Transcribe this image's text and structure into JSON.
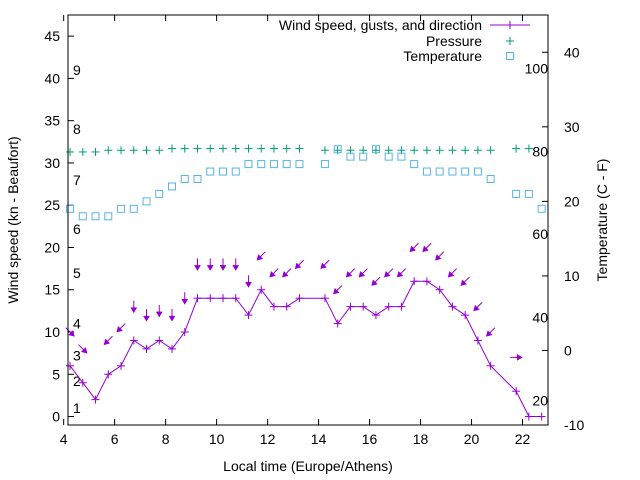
{
  "chart_data": {
    "type": "line",
    "xlabel": "Local time (Europe/Athens)",
    "ylabel": "Wind speed (kn - Beaufort)",
    "y2label": "Temperature (C - F)",
    "xlim": [
      4.17,
      23
    ],
    "ylim": [
      -1,
      47.5
    ],
    "y2lim": [
      -10,
      45
    ],
    "x_ticks": [
      4,
      6,
      8,
      10,
      12,
      14,
      16,
      18,
      20,
      22
    ],
    "y_ticks": [
      0,
      5,
      10,
      15,
      20,
      25,
      30,
      35,
      40,
      45
    ],
    "y2_ticks": [
      -10,
      0,
      10,
      20,
      30,
      40
    ],
    "beaufort_labels": [
      {
        "label": "1",
        "y": 1
      },
      {
        "label": "2",
        "y": 4.2
      },
      {
        "label": "3",
        "y": 7.2
      },
      {
        "label": "4",
        "y": 11
      },
      {
        "label": "5",
        "y": 17
      },
      {
        "label": "6",
        "y": 22.2
      },
      {
        "label": "7",
        "y": 28
      },
      {
        "label": "8",
        "y": 34
      },
      {
        "label": "9",
        "y": 41
      }
    ],
    "fahrenheit_labels": [
      {
        "label": "20",
        "y2": -6.7
      },
      {
        "label": "40",
        "y2": 4.4
      },
      {
        "label": "60",
        "y2": 15.6
      },
      {
        "label": "80",
        "y2": 26.7
      },
      {
        "label": "100",
        "y2": 37.8
      }
    ],
    "legend_position": "top-right",
    "legend": [
      {
        "label": "Wind speed, gusts, and direction",
        "color": "#9400d3",
        "marker": "plus-line"
      },
      {
        "label": "Pressure",
        "color": "#009e73",
        "marker": "plus"
      },
      {
        "label": "Temperature",
        "color": "#56b4e9",
        "marker": "square"
      }
    ],
    "series": [
      {
        "name": "Wind speed, gusts, and direction",
        "color": "#9400d3",
        "axis": "y",
        "x": [
          4.25,
          4.75,
          5.25,
          5.75,
          6.25,
          6.75,
          7.25,
          7.75,
          8.25,
          8.75,
          9.25,
          9.75,
          10.25,
          10.75,
          11.25,
          11.75,
          12.25,
          12.75,
          13.25,
          14.25,
          14.75,
          15.25,
          15.75,
          16.25,
          16.75,
          17.25,
          17.75,
          18.25,
          18.75,
          19.25,
          19.75,
          20.25,
          20.75,
          21.75,
          22.25,
          22.75
        ],
        "y": [
          6,
          4,
          2,
          5,
          6,
          9,
          8,
          9,
          8,
          10,
          14,
          14,
          14,
          14,
          12,
          15,
          13,
          13,
          14,
          14,
          11,
          13,
          13,
          12,
          13,
          13,
          16,
          16,
          15,
          13,
          12,
          9,
          6,
          3,
          0,
          0
        ]
      },
      {
        "name": "Pressure",
        "color": "#009e73",
        "axis": "y",
        "x": [
          4.25,
          4.75,
          5.25,
          5.75,
          6.25,
          6.75,
          7.25,
          7.75,
          8.25,
          8.75,
          9.25,
          9.75,
          10.25,
          10.75,
          11.25,
          11.75,
          12.25,
          12.75,
          13.25,
          14.25,
          14.75,
          15.25,
          15.75,
          16.25,
          16.75,
          17.25,
          17.75,
          18.25,
          18.75,
          19.25,
          19.75,
          20.25,
          20.75,
          21.75,
          22.25
        ],
        "y": [
          31.3,
          31.3,
          31.3,
          31.5,
          31.5,
          31.5,
          31.5,
          31.5,
          31.7,
          31.7,
          31.7,
          31.7,
          31.7,
          31.7,
          31.7,
          31.7,
          31.7,
          31.7,
          31.7,
          31.5,
          31.5,
          31.5,
          31.5,
          31.5,
          31.5,
          31.5,
          31.5,
          31.5,
          31.5,
          31.5,
          31.5,
          31.5,
          31.5,
          31.7,
          31.7
        ]
      },
      {
        "name": "Temperature",
        "color": "#56b4e9",
        "axis": "y2",
        "x": [
          4.25,
          4.75,
          5.25,
          5.75,
          6.25,
          6.75,
          7.25,
          7.75,
          8.25,
          8.75,
          9.25,
          9.75,
          10.25,
          10.75,
          11.25,
          11.75,
          12.25,
          12.75,
          13.25,
          14.25,
          14.75,
          15.25,
          15.75,
          16.25,
          16.75,
          17.25,
          17.75,
          18.25,
          18.75,
          19.25,
          19.75,
          20.25,
          20.75,
          21.75,
          22.25,
          22.75
        ],
        "y": [
          19,
          18,
          18,
          18,
          19,
          19,
          20,
          21,
          22,
          23,
          23,
          24,
          24,
          24,
          25,
          25,
          25,
          25,
          25,
          25,
          27,
          26,
          26,
          27,
          26,
          26,
          25,
          24,
          24,
          24,
          24,
          24,
          23,
          21,
          21,
          19
        ]
      }
    ],
    "wind_direction_arrows": {
      "color": "#9400d3",
      "points": [
        {
          "x": 4.25,
          "y": 10,
          "dir": "se"
        },
        {
          "x": 4.75,
          "y": 8,
          "dir": "se"
        },
        {
          "x": 5.75,
          "y": 9,
          "dir": "sw"
        },
        {
          "x": 6.25,
          "y": 10.5,
          "dir": "sw"
        },
        {
          "x": 6.75,
          "y": 13,
          "dir": "s"
        },
        {
          "x": 7.25,
          "y": 12,
          "dir": "s"
        },
        {
          "x": 7.75,
          "y": 12.5,
          "dir": "s"
        },
        {
          "x": 8.25,
          "y": 12,
          "dir": "s"
        },
        {
          "x": 8.75,
          "y": 14,
          "dir": "s"
        },
        {
          "x": 9.25,
          "y": 18,
          "dir": "s"
        },
        {
          "x": 9.75,
          "y": 18,
          "dir": "s"
        },
        {
          "x": 10.25,
          "y": 18,
          "dir": "s"
        },
        {
          "x": 10.75,
          "y": 18,
          "dir": "s"
        },
        {
          "x": 11.25,
          "y": 16,
          "dir": "s"
        },
        {
          "x": 11.75,
          "y": 19,
          "dir": "sw"
        },
        {
          "x": 12.25,
          "y": 17,
          "dir": "sw"
        },
        {
          "x": 12.75,
          "y": 17,
          "dir": "sw"
        },
        {
          "x": 13.25,
          "y": 18,
          "dir": "sw"
        },
        {
          "x": 14.25,
          "y": 18,
          "dir": "sw"
        },
        {
          "x": 14.75,
          "y": 15,
          "dir": "sw"
        },
        {
          "x": 15.25,
          "y": 17,
          "dir": "sw"
        },
        {
          "x": 15.75,
          "y": 17,
          "dir": "sw"
        },
        {
          "x": 16.25,
          "y": 16,
          "dir": "sw"
        },
        {
          "x": 16.75,
          "y": 17,
          "dir": "sw"
        },
        {
          "x": 17.25,
          "y": 17,
          "dir": "sw"
        },
        {
          "x": 17.75,
          "y": 20,
          "dir": "sw"
        },
        {
          "x": 18.25,
          "y": 20,
          "dir": "sw"
        },
        {
          "x": 18.75,
          "y": 19,
          "dir": "sw"
        },
        {
          "x": 19.25,
          "y": 17,
          "dir": "sw"
        },
        {
          "x": 19.75,
          "y": 16,
          "dir": "sw"
        },
        {
          "x": 20.25,
          "y": 13,
          "dir": "sw"
        },
        {
          "x": 20.75,
          "y": 10,
          "dir": "sw"
        },
        {
          "x": 21.75,
          "y": 7,
          "dir": "e"
        }
      ]
    }
  }
}
